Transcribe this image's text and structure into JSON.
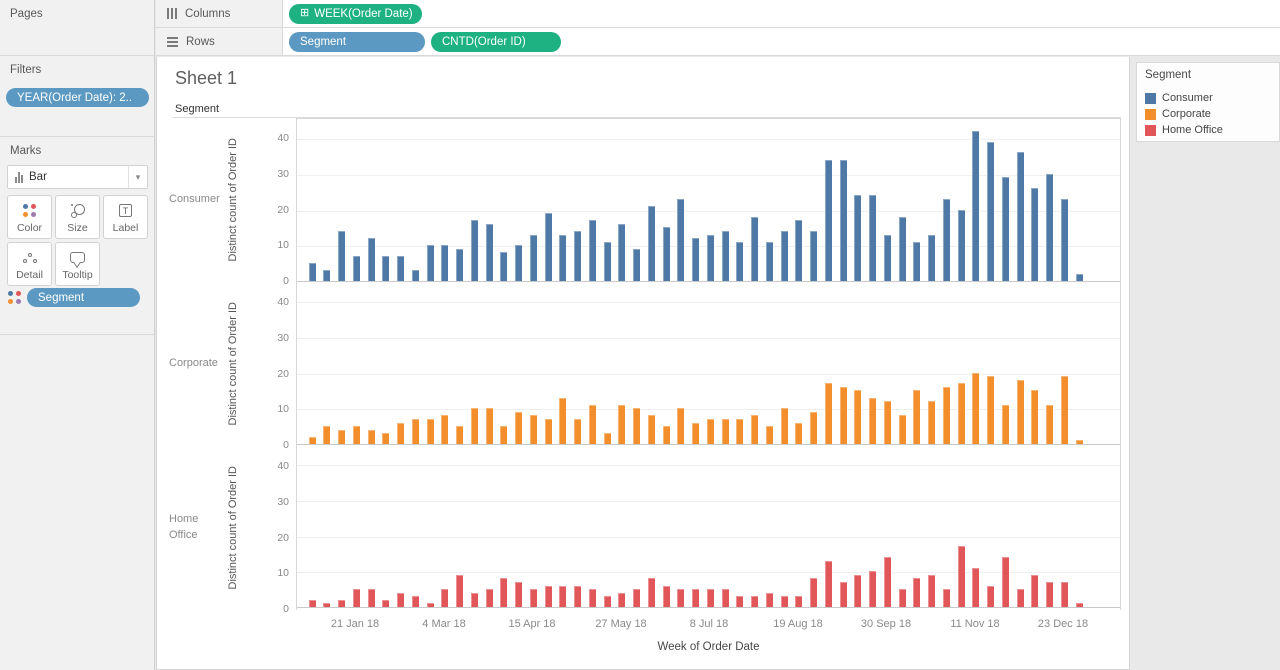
{
  "sidebar": {
    "pages": {
      "title": "Pages"
    },
    "filters": {
      "title": "Filters",
      "pills": [
        {
          "text": "YEAR(Order Date): 2..",
          "type": "blue"
        }
      ]
    },
    "marks": {
      "title": "Marks",
      "mark_type": "Bar",
      "buttons": [
        {
          "label": "Color"
        },
        {
          "label": "Size"
        },
        {
          "label": "Label"
        },
        {
          "label": "Detail"
        },
        {
          "label": "Tooltip"
        }
      ],
      "pills": [
        {
          "text": "Segment",
          "type": "blue",
          "role": "color"
        }
      ]
    }
  },
  "shelves": {
    "columns": {
      "label": "Columns",
      "pills": [
        {
          "text": "WEEK(Order Date)",
          "type": "green",
          "icon": "expand-plus"
        }
      ]
    },
    "rows": {
      "label": "Rows",
      "pills": [
        {
          "text": "Segment",
          "type": "blue"
        },
        {
          "text": "CNTD(Order ID)",
          "type": "green"
        }
      ]
    }
  },
  "sheet": {
    "title": "Sheet 1",
    "row_header": "Segment"
  },
  "legend": {
    "title": "Segment",
    "items": [
      {
        "label": "Consumer",
        "color": "#4e79a7"
      },
      {
        "label": "Corporate",
        "color": "#f28e2b"
      },
      {
        "label": "Home Office",
        "color": "#e15759"
      }
    ]
  },
  "chart_data": {
    "type": "bar",
    "title": "Sheet 1",
    "xlabel": "Week of Order Date",
    "ylabel": "Distinct count of Order ID",
    "facets": [
      "Consumer",
      "Corporate",
      "Home\nOffice"
    ],
    "y_ticks": [
      0,
      10,
      20,
      30,
      40
    ],
    "ylim": [
      0,
      45
    ],
    "grid": true,
    "legend_position": "right",
    "x_tick_labels": [
      "21 Jan 18",
      "4 Mar 18",
      "15 Apr 18",
      "27 May 18",
      "8 Jul 18",
      "19 Aug 18",
      "30 Sep 18",
      "11 Nov 18",
      "23 Dec 18"
    ],
    "x_tick_indices": [
      3,
      9,
      15,
      21,
      27,
      33,
      39,
      45,
      51
    ],
    "x_weeks": 53,
    "series": [
      {
        "name": "Consumer",
        "color": "#4e79a7",
        "values": [
          5,
          3,
          14,
          7,
          12,
          7,
          7,
          3,
          10,
          10,
          9,
          17,
          16,
          8,
          10,
          13,
          19,
          13,
          14,
          17,
          11,
          16,
          9,
          21,
          15,
          23,
          12,
          13,
          14,
          11,
          18,
          11,
          14,
          17,
          14,
          34,
          34,
          24,
          24,
          13,
          18,
          11,
          13,
          23,
          20,
          42,
          39,
          29,
          36,
          26,
          30,
          23,
          2
        ]
      },
      {
        "name": "Corporate",
        "color": "#f28e2b",
        "values": [
          2,
          5,
          4,
          5,
          4,
          3,
          6,
          7,
          7,
          8,
          5,
          10,
          10,
          5,
          9,
          8,
          7,
          13,
          7,
          11,
          3,
          11,
          10,
          8,
          5,
          10,
          6,
          7,
          7,
          7,
          8,
          5,
          10,
          6,
          9,
          17,
          16,
          15,
          13,
          12,
          8,
          15,
          12,
          16,
          17,
          20,
          19,
          11,
          18,
          15,
          11,
          19,
          1
        ]
      },
      {
        "name": "Home Office",
        "color": "#e15759",
        "values": [
          2,
          1,
          2,
          5,
          5,
          2,
          4,
          3,
          1,
          5,
          9,
          4,
          5,
          8,
          7,
          5,
          6,
          6,
          6,
          5,
          3,
          4,
          5,
          8,
          6,
          5,
          5,
          5,
          5,
          3,
          3,
          4,
          3,
          3,
          8,
          13,
          7,
          9,
          10,
          14,
          5,
          8,
          9,
          5,
          17,
          11,
          6,
          14,
          5,
          9,
          7,
          7,
          1
        ]
      }
    ]
  }
}
